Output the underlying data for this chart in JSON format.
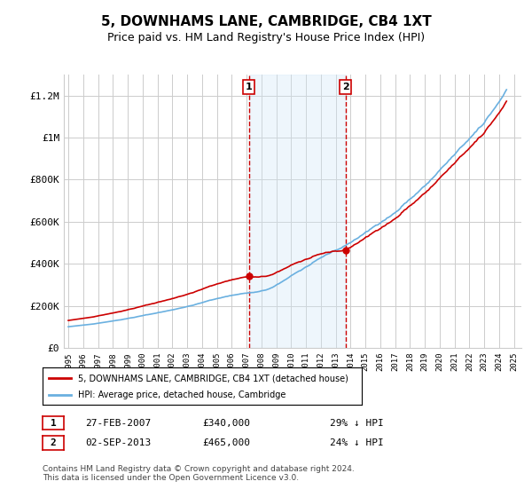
{
  "title": "5, DOWNHAMS LANE, CAMBRIDGE, CB4 1XT",
  "subtitle": "Price paid vs. HM Land Registry's House Price Index (HPI)",
  "legend_line1": "5, DOWNHAMS LANE, CAMBRIDGE, CB4 1XT (detached house)",
  "legend_line2": "HPI: Average price, detached house, Cambridge",
  "sale1_label": "1",
  "sale1_date": "27-FEB-2007",
  "sale1_price": "£340,000",
  "sale1_hpi": "29% ↓ HPI",
  "sale1_year": 2007.15,
  "sale1_price_val": 340000,
  "sale2_label": "2",
  "sale2_date": "02-SEP-2013",
  "sale2_price": "£465,000",
  "sale2_hpi": "24% ↓ HPI",
  "sale2_year": 2013.67,
  "sale2_price_val": 465000,
  "footer": "Contains HM Land Registry data © Crown copyright and database right 2024.\nThis data is licensed under the Open Government Licence v3.0.",
  "hpi_color": "#6ab0e0",
  "property_color": "#cc0000",
  "sale_marker_color": "#cc0000",
  "shade_color": "#d0e8f8",
  "background_color": "#ffffff",
  "grid_color": "#cccccc",
  "title_fontsize": 11,
  "subtitle_fontsize": 9,
  "axis_fontsize": 8,
  "ylim": [
    0,
    1300000
  ],
  "yticks": [
    0,
    200000,
    400000,
    600000,
    800000,
    1000000,
    1200000
  ],
  "xlim_start": 1995,
  "xlim_end": 2025.5
}
